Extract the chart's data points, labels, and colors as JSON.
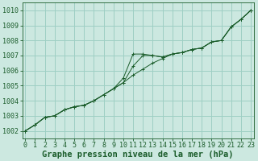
{
  "xlabel": "Graphe pression niveau de la mer (hPa)",
  "ylim": [
    1001.5,
    1010.5
  ],
  "xlim": [
    -0.3,
    23.3
  ],
  "yticks": [
    1002,
    1003,
    1004,
    1005,
    1006,
    1007,
    1008,
    1009,
    1010
  ],
  "xticks": [
    0,
    1,
    2,
    3,
    4,
    5,
    6,
    7,
    8,
    9,
    10,
    11,
    12,
    13,
    14,
    15,
    16,
    17,
    18,
    19,
    20,
    21,
    22,
    23
  ],
  "background_color": "#cce8e0",
  "grid_color": "#9ecfc4",
  "line_color": "#1a5c2a",
  "line1": [
    1002.0,
    1002.4,
    1002.9,
    1003.0,
    1003.4,
    1003.6,
    1003.7,
    1004.0,
    1004.4,
    1004.8,
    1005.2,
    1005.7,
    1006.1,
    1006.5,
    1006.8,
    1007.1,
    1007.2,
    1007.4,
    1007.5,
    1007.9,
    1008.0,
    1008.9,
    1009.4,
    1010.0
  ],
  "line2": [
    1002.0,
    1002.4,
    1002.9,
    1003.0,
    1003.4,
    1003.6,
    1003.7,
    1004.0,
    1004.4,
    1004.8,
    1005.2,
    1006.3,
    1007.0,
    1007.0,
    1006.9,
    1007.1,
    1007.2,
    1007.4,
    1007.5,
    1007.9,
    1008.0,
    1008.9,
    1009.4,
    1010.0
  ],
  "line3": [
    1002.0,
    1002.4,
    1002.9,
    1003.0,
    1003.4,
    1003.6,
    1003.7,
    1004.0,
    1004.4,
    1004.8,
    1005.5,
    1007.1,
    1007.1,
    1007.0,
    1006.9,
    1007.1,
    1007.2,
    1007.4,
    1007.5,
    1007.9,
    1008.0,
    1008.9,
    1009.4,
    1010.0
  ],
  "title_fontsize": 7.5,
  "tick_fontsize": 6,
  "tick_color": "#1a5c2a"
}
